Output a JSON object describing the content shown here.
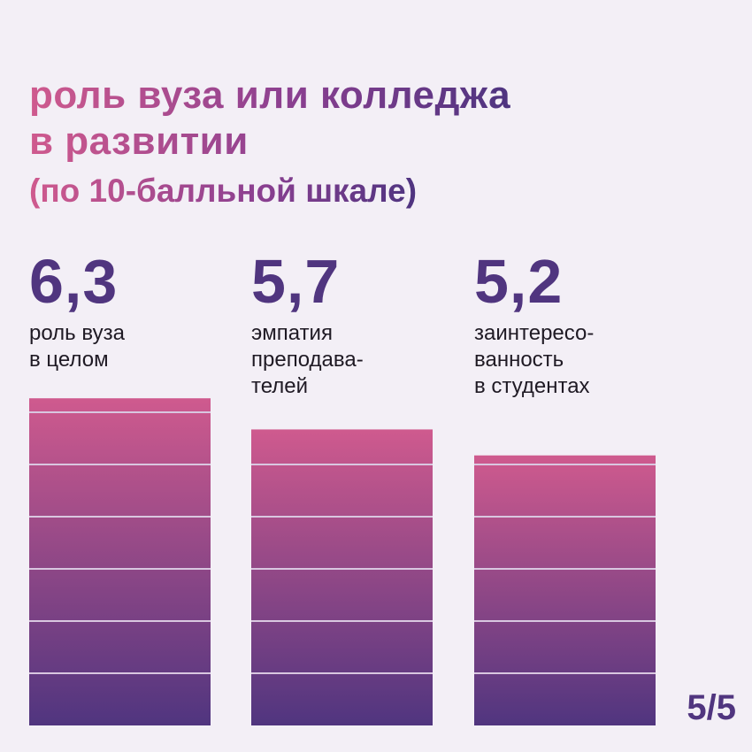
{
  "title": {
    "lines": [
      "роль вуза или колледжа",
      "в развитии"
    ],
    "subtitle": "(по 10-балльной шкале)"
  },
  "items": [
    {
      "value": "6,3",
      "label_lines": [
        "роль вуза",
        "в целом"
      ]
    },
    {
      "value": "5,7",
      "label_lines": [
        "эмпатия",
        "преподава-",
        "телей"
      ]
    },
    {
      "value": "5,2",
      "label_lines": [
        "заинтересо-",
        "ванность",
        "в студентах"
      ]
    }
  ],
  "page_number": "5/5",
  "chart_data": {
    "type": "bar",
    "categories": [
      "роль вуза в целом",
      "эмпатия преподавателей",
      "заинтересованность в студентах"
    ],
    "values": [
      6.3,
      5.7,
      5.2
    ],
    "title": "роль вуза или колледжа в развитии",
    "subtitle": "(по 10-балльной шкале)",
    "ylim": [
      0,
      10
    ],
    "grid": true,
    "legend": "none"
  },
  "colors": {
    "bar_top": "#cf5a8e",
    "bar_bottom": "#50357f",
    "value_text": "#50357f",
    "background": "#f3eff6",
    "grid_line": "#d9c7e0"
  }
}
